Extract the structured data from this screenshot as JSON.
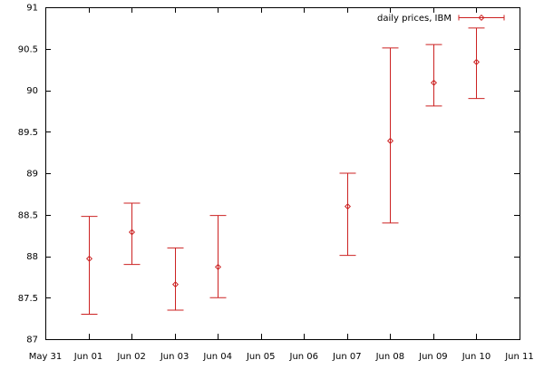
{
  "chart_data": {
    "type": "scatter",
    "title": "",
    "xlabel": "",
    "ylabel": "",
    "x_ticks": [
      "May 31",
      "Jun 01",
      "Jun 02",
      "Jun 03",
      "Jun 04",
      "Jun 05",
      "Jun 06",
      "Jun 07",
      "Jun 08",
      "Jun 09",
      "Jun 10",
      "Jun 11"
    ],
    "y_ticks": [
      "87",
      "87.5",
      "88",
      "88.5",
      "89",
      "89.5",
      "90",
      "90.5",
      "91"
    ],
    "xlim": [
      "May 31",
      "Jun 11"
    ],
    "ylim": [
      87,
      91
    ],
    "grid": false,
    "legend_position": "top-right",
    "series": [
      {
        "name": "daily prices, IBM",
        "color": "#cc2222",
        "marker": "diamond",
        "error_bars": true,
        "points": [
          {
            "x": "Jun 01",
            "y": 87.97,
            "low": 87.3,
            "high": 88.48
          },
          {
            "x": "Jun 02",
            "y": 88.29,
            "low": 87.9,
            "high": 88.64
          },
          {
            "x": "Jun 03",
            "y": 87.66,
            "low": 87.35,
            "high": 88.1
          },
          {
            "x": "Jun 04",
            "y": 87.87,
            "low": 87.5,
            "high": 88.49
          },
          {
            "x": "Jun 07",
            "y": 88.6,
            "low": 88.01,
            "high": 89.0
          },
          {
            "x": "Jun 08",
            "y": 89.39,
            "low": 88.4,
            "high": 90.51
          },
          {
            "x": "Jun 09",
            "y": 90.09,
            "low": 89.81,
            "high": 90.55
          },
          {
            "x": "Jun 10",
            "y": 90.34,
            "low": 89.9,
            "high": 90.75
          }
        ]
      }
    ]
  }
}
